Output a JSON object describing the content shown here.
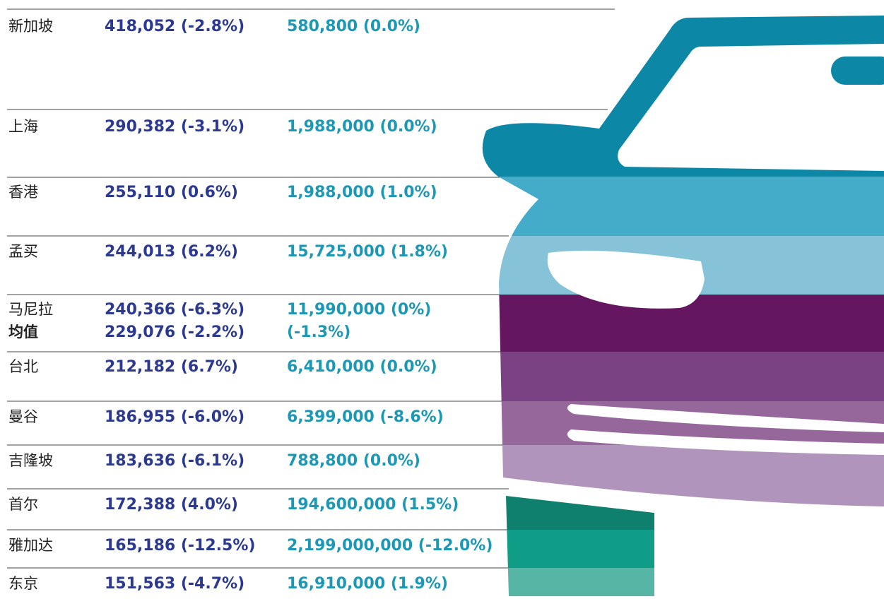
{
  "rows": [
    {
      "city": "新加坡",
      "value_a": "418,052 (-2.8%)",
      "value_b": "580,800 (0.0%)"
    },
    {
      "city": "上海",
      "value_a": "290,382 (-3.1%)",
      "value_b": "1,988,000 (0.0%)"
    },
    {
      "city": "香港",
      "value_a": "255,110 (0.6%)",
      "value_b": "1,988,000 (1.0%)"
    },
    {
      "city": "孟买",
      "value_a": "244,013 (6.2%)",
      "value_b": "15,725,000 (1.8%)"
    },
    {
      "city": "马尼拉",
      "value_a": "240,366 (-6.3%)",
      "value_b": "11,990,000 (0%)"
    },
    {
      "city": "台北",
      "value_a": "212,182 (6.7%)",
      "value_b": "6,410,000 (0.0%)"
    },
    {
      "city": "曼谷",
      "value_a": "186,955 (-6.0%)",
      "value_b": "6,399,000 (-8.6%)"
    },
    {
      "city": "吉隆坡",
      "value_a": "183,636 (-6.1%)",
      "value_b": "788,800 (0.0%)"
    },
    {
      "city": "首尔",
      "value_a": "172,388 (4.0%)",
      "value_b": "194,600,000 (1.5%)"
    },
    {
      "city": "雅加达",
      "value_a": "165,186 (-12.5%)",
      "value_b": "2,199,000,000 (-12.0%)"
    },
    {
      "city": "东京",
      "value_a": "151,563 (-4.7%)",
      "value_b": "16,910,000 (1.9%)"
    }
  ],
  "average": {
    "label": "均值",
    "value_a": "229,076 (-2.2%)",
    "value_b": "(-1.3%)"
  }
}
